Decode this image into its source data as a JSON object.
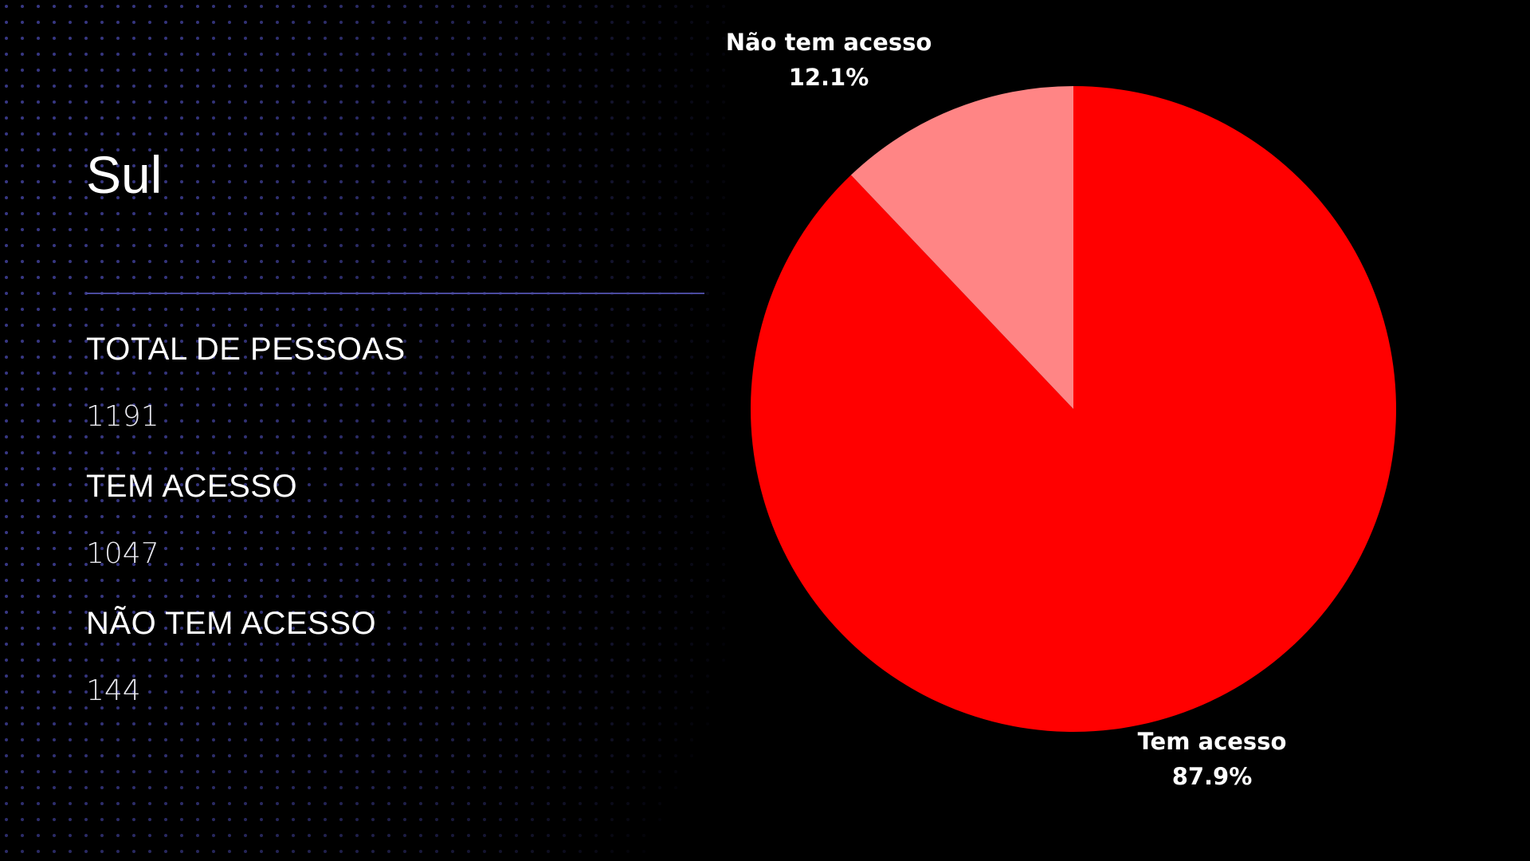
{
  "slide": {
    "title": "Sul",
    "stats": [
      {
        "label": "TOTAL DE PESSOAS",
        "value": "1191"
      },
      {
        "label": "TEM ACESSO",
        "value": "1047"
      },
      {
        "label": "NÃO TEM ACESSO",
        "value": "144"
      }
    ]
  },
  "colors": {
    "background": "#000000",
    "dots": "#3a3a8a",
    "divider": "#4a4a9e",
    "slice_tem_acesso": "#ff0000",
    "slice_nao_tem_acesso": "#ff8585"
  },
  "chart_data": {
    "type": "pie",
    "slices": [
      {
        "label": "Tem acesso",
        "percent_label": "87.9%",
        "value": 87.9,
        "color": "#ff0000"
      },
      {
        "label": "Não tem acesso",
        "percent_label": "12.1%",
        "value": 12.1,
        "color": "#ff8585"
      }
    ],
    "start": "12 o'clock",
    "direction": "clockwise"
  }
}
